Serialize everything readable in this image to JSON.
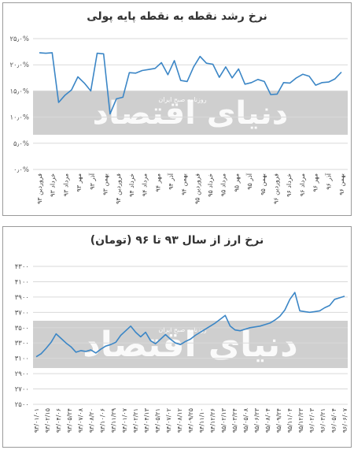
{
  "charts": [
    {
      "title": "نرخ رشد نقطه به نقطه پایه پولی",
      "chart_data": {
        "type": "line",
        "color": "#3b86c6",
        "ylim": [
          0,
          25
        ],
        "yticks": [
          "۰٫۰%",
          "۵٫۰%",
          "۱۰٫۰%",
          "۱۵٫۰%",
          "۲۰٫۰%",
          "۲۵٫۰%"
        ],
        "xtick_labels": [
          "فروردین ۹۳",
          "خرداد ۹۳",
          "مرداد ۹۳",
          "مهر ۹۳",
          "آذر ۹۳",
          "بهمن ۹۳",
          "فروردین ۹۴",
          "خرداد ۹۴",
          "مرداد ۹۴",
          "مهر ۹۴",
          "آذر ۹۴",
          "بهمن ۹۴",
          "فروردین ۹۵",
          "خرداد ۹۵",
          "مرداد ۹۵",
          "مهر ۹۵",
          "آذر ۹۵",
          "بهمن ۹۵",
          "فروردین ۹۶",
          "خرداد ۹۶",
          "مرداد ۹۶",
          "مهر ۹۶",
          "آذر ۹۶",
          "بهمن ۹۶"
        ],
        "values": [
          22.3,
          22.2,
          22.3,
          12.8,
          14.2,
          15.2,
          17.7,
          16.5,
          15.0,
          22.2,
          22.1,
          10.6,
          13.5,
          13.8,
          18.5,
          18.4,
          18.9,
          19.1,
          19.3,
          20.4,
          18.1,
          20.8,
          17.0,
          16.8,
          19.6,
          21.6,
          20.3,
          20.1,
          17.6,
          19.6,
          17.5,
          19.2,
          16.3,
          16.6,
          17.2,
          16.8,
          14.3,
          14.4,
          16.6,
          16.5,
          17.5,
          18.2,
          17.8,
          16.1,
          16.6,
          16.7,
          17.3,
          18.6
        ]
      },
      "watermark": {
        "main": "دنیای اقتصاد",
        "sub": "روزنامه صبح ایران"
      }
    },
    {
      "title": "نرخ ارز از سال ۹۳ تا ۹۶ (تومان)",
      "chart_data": {
        "type": "line",
        "color": "#3b86c6",
        "ylim": [
          2500,
          4300
        ],
        "yticks": [
          "۲۵۰۰",
          "۲۷۰۰",
          "۲۹۰۰",
          "۳۱۰۰",
          "۳۳۰۰",
          "۳۵۰۰",
          "۳۷۰۰",
          "۳۹۰۰",
          "۴۱۰۰",
          "۴۳۰۰"
        ],
        "xtick_labels": [
          "۹۳/۰۱/۰۱",
          "۹۳/۰۲/۱۵",
          "۹۳/۰۴/۰۶",
          "۹۳/۰۵/۲۴",
          "۹۳/۰۷/۰۸",
          "۹۳/۰۸/۲۰",
          "۹۳/۱۰/۰۶",
          "۹۳/۱۱/۲۹",
          "۹۴/۰۱/۰۷",
          "۹۴/۰۲/۲۱",
          "۹۴/۰۴/۱۳",
          "۹۴/۰۵/۲۱",
          "۹۴/۰۷/۰۲",
          "۹۴/۰۸/۱۲",
          "۹۴/۰۹/۲۵",
          "۹۴/۱۱/۱۰",
          "۹۴/۱۲/۲۶",
          "۹۵/۰۲/۱۳",
          "۹۵/۰۳/۲۴",
          "۹۵/۰۵/۰۸",
          "۹۵/۰۶/۲۳",
          "۹۵/۰۸/۰۴",
          "۹۵/۰۹/۲۴",
          "۹۵/۱۱/۰۴",
          "۹۵/۱۲/۲۳",
          "۹۶/۰۲/۰۳",
          "۹۶/۰۳/۲۱",
          "۹۶/۰۵/۰۴",
          "۹۶/۰۶/۰۷"
        ],
        "values": [
          3120,
          3160,
          3230,
          3310,
          3420,
          3360,
          3300,
          3250,
          3180,
          3200,
          3190,
          3210,
          3170,
          3220,
          3260,
          3280,
          3310,
          3400,
          3460,
          3520,
          3440,
          3380,
          3440,
          3330,
          3290,
          3350,
          3410,
          3350,
          3300,
          3280,
          3320,
          3350,
          3400,
          3440,
          3480,
          3520,
          3560,
          3610,
          3660,
          3520,
          3470,
          3460,
          3480,
          3500,
          3510,
          3520,
          3540,
          3560,
          3600,
          3650,
          3730,
          3870,
          3960,
          3720,
          3710,
          3700,
          3710,
          3720,
          3760,
          3790,
          3870,
          3890,
          3910
        ]
      },
      "watermark": {
        "main": "دنیای اقتصاد",
        "sub": "روزنامه صبح ایران"
      }
    }
  ]
}
